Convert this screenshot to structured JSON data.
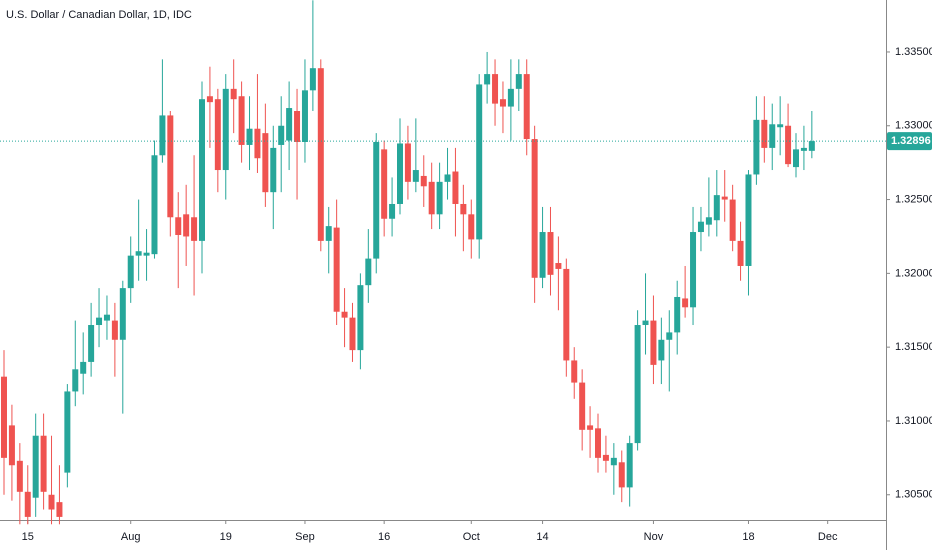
{
  "chart_data": {
    "type": "candlestick",
    "title": "U.S. Dollar / Canadian Dollar, 1D, IDC",
    "categories": [
      null,
      null,
      null,
      "15",
      null,
      null,
      null,
      null,
      null,
      null,
      null,
      null,
      null,
      null,
      null,
      null,
      "Aug",
      null,
      null,
      null,
      null,
      null,
      null,
      null,
      null,
      null,
      null,
      null,
      "19",
      null,
      null,
      null,
      null,
      null,
      null,
      null,
      null,
      null,
      "Sep",
      null,
      null,
      null,
      null,
      null,
      null,
      null,
      null,
      null,
      "16",
      null,
      null,
      null,
      null,
      null,
      null,
      null,
      null,
      null,
      null,
      "Oct",
      null,
      null,
      null,
      null,
      null,
      null,
      null,
      null,
      "14",
      null,
      null,
      null,
      null,
      null,
      null,
      null,
      null,
      null,
      null,
      null,
      null,
      null,
      "Nov",
      null,
      null,
      null,
      null,
      null,
      null,
      null,
      null,
      null,
      null,
      null,
      "18",
      null,
      null,
      null,
      null,
      null,
      null,
      null,
      null,
      null,
      "Dec"
    ],
    "open": [
      1.313,
      1.3097,
      1.3073,
      1.3052,
      1.3048,
      1.309,
      1.305,
      1.3045,
      1.3065,
      1.312,
      1.3132,
      1.314,
      1.3165,
      1.3168,
      1.3168,
      1.3155,
      1.319,
      1.3212,
      1.3212,
      1.3213,
      1.328,
      1.3307,
      1.3238,
      1.324,
      1.3238,
      1.3222,
      1.332,
      1.3318,
      1.327,
      1.3325,
      1.332,
      1.3287,
      1.3298,
      1.3295,
      1.3255,
      1.3287,
      1.329,
      1.331,
      1.3289,
      1.3324,
      1.3339,
      1.3222,
      1.3231,
      1.3174,
      1.317,
      1.3148,
      1.3192,
      1.321,
      1.3284,
      1.3237,
      1.3247,
      1.3288,
      1.3262,
      1.3266,
      1.3262,
      1.324,
      1.3262,
      1.3269,
      1.3247,
      1.324,
      1.3223,
      1.3328,
      1.3335,
      1.3318,
      1.3313,
      1.3325,
      1.3335,
      1.3291,
      1.3197,
      1.3228,
      1.3207,
      1.3203,
      1.3141,
      1.3126,
      1.3097,
      1.3095,
      1.3077,
      1.307,
      1.3072,
      1.3055,
      1.3085,
      1.3165,
      1.3168,
      1.3141,
      1.3155,
      1.316,
      1.3183,
      1.3177,
      1.3228,
      1.3233,
      1.3236,
      1.3252,
      1.325,
      1.3222,
      1.3205,
      1.3267,
      1.3304,
      1.3285,
      1.3299,
      1.33,
      1.3272,
      1.3283,
      1.3283,
      null,
      null
    ],
    "high": [
      1.3148,
      1.3111,
      1.3085,
      1.307,
      1.3105,
      1.3105,
      1.309,
      1.307,
      1.3125,
      1.3168,
      1.316,
      1.318,
      1.319,
      1.3185,
      1.318,
      1.3195,
      1.3225,
      1.325,
      1.323,
      1.329,
      1.3345,
      1.331,
      1.3255,
      1.326,
      1.328,
      1.333,
      1.334,
      1.3325,
      1.3335,
      1.3345,
      1.333,
      1.332,
      1.3335,
      1.3315,
      1.33,
      1.332,
      1.333,
      1.3325,
      1.3345,
      1.3385,
      1.3345,
      1.3245,
      1.325,
      1.319,
      1.318,
      1.32,
      1.323,
      1.3295,
      1.329,
      1.3265,
      1.3305,
      1.33,
      1.3305,
      1.328,
      1.3275,
      1.3275,
      1.3285,
      1.3285,
      1.326,
      1.325,
      1.3335,
      1.335,
      1.3345,
      1.333,
      1.3345,
      1.3345,
      1.3345,
      1.33,
      1.3245,
      1.3245,
      1.3225,
      1.321,
      1.315,
      1.3135,
      1.311,
      1.3105,
      1.309,
      1.3085,
      1.308,
      1.309,
      1.3175,
      1.32,
      1.3185,
      1.317,
      1.3175,
      1.3195,
      1.3205,
      1.3245,
      1.3245,
      1.3265,
      1.327,
      1.327,
      1.326,
      1.3235,
      1.327,
      1.332,
      1.332,
      1.3315,
      1.332,
      1.3315,
      1.3295,
      1.33,
      1.331,
      null,
      null
    ],
    "low": [
      1.305,
      1.3046,
      1.303,
      1.303,
      1.3035,
      1.304,
      1.303,
      1.303,
      1.3055,
      1.311,
      1.3118,
      1.313,
      1.315,
      1.3155,
      1.313,
      1.3105,
      1.318,
      1.3195,
      1.3195,
      1.321,
      1.3275,
      1.3225,
      1.319,
      1.3205,
      1.3185,
      1.32,
      1.3285,
      1.3255,
      1.325,
      1.3295,
      1.3275,
      1.327,
      1.3268,
      1.3245,
      1.323,
      1.3255,
      1.327,
      1.325,
      1.3275,
      1.331,
      1.3215,
      1.32,
      1.3165,
      1.315,
      1.314,
      1.3135,
      1.318,
      1.32,
      1.3225,
      1.3225,
      1.324,
      1.325,
      1.3255,
      1.3245,
      1.323,
      1.323,
      1.325,
      1.3225,
      1.3215,
      1.321,
      1.321,
      1.3315,
      1.33,
      1.3295,
      1.329,
      1.331,
      1.328,
      1.318,
      1.319,
      1.3185,
      1.3175,
      1.313,
      1.3115,
      1.308,
      1.3075,
      1.3065,
      1.3065,
      1.305,
      1.3045,
      1.3042,
      1.308,
      1.3145,
      1.3125,
      1.3125,
      1.312,
      1.3145,
      1.317,
      1.3165,
      1.3215,
      1.3225,
      1.3225,
      1.3235,
      1.3215,
      1.3195,
      1.3185,
      1.326,
      1.3275,
      1.327,
      1.328,
      1.3272,
      1.3265,
      1.327,
      1.3278,
      null,
      null
    ],
    "close": [
      1.3075,
      1.307,
      1.3052,
      1.3035,
      1.309,
      1.3052,
      1.304,
      1.3035,
      1.312,
      1.3135,
      1.314,
      1.3165,
      1.317,
      1.3172,
      1.3155,
      1.319,
      1.3212,
      1.3215,
      1.3214,
      1.328,
      1.3307,
      1.3238,
      1.3226,
      1.3225,
      1.3222,
      1.3318,
      1.3316,
      1.327,
      1.3325,
      1.3318,
      1.3287,
      1.3298,
      1.3278,
      1.3255,
      1.3285,
      1.33,
      1.3312,
      1.3289,
      1.3324,
      1.3339,
      1.3222,
      1.3232,
      1.3174,
      1.317,
      1.3148,
      1.3192,
      1.321,
      1.3289,
      1.3237,
      1.3247,
      1.3288,
      1.3262,
      1.327,
      1.3259,
      1.324,
      1.3262,
      1.3267,
      1.3247,
      1.324,
      1.3223,
      1.3328,
      1.3335,
      1.3315,
      1.3313,
      1.3325,
      1.3335,
      1.3291,
      1.3197,
      1.3228,
      1.3199,
      1.3203,
      1.3141,
      1.3126,
      1.3094,
      1.3094,
      1.3075,
      1.3073,
      1.3075,
      1.3055,
      1.3085,
      1.3165,
      1.3168,
      1.3138,
      1.3155,
      1.316,
      1.3184,
      1.3177,
      1.3228,
      1.3235,
      1.3238,
      1.3253,
      1.325,
      1.3222,
      1.3205,
      1.3267,
      1.3304,
      1.3285,
      1.3301,
      1.3301,
      1.3274,
      1.3284,
      1.3285,
      1.32896,
      null,
      null
    ],
    "up_color": "#26a69a",
    "down_color": "#ef5350",
    "last_price": 1.32896,
    "ylim": [
      1.30329,
      1.33852
    ],
    "yticks": [
      {
        "value": 1.305,
        "label": "1.30500"
      },
      {
        "value": 1.31,
        "label": "1.31000"
      },
      {
        "value": 1.315,
        "label": "1.31500"
      },
      {
        "value": 1.32,
        "label": "1.32000"
      },
      {
        "value": 1.325,
        "label": "1.32500"
      },
      {
        "value": 1.33,
        "label": "1.33000"
      },
      {
        "value": 1.335,
        "label": "1.33500"
      }
    ],
    "grid": false
  }
}
